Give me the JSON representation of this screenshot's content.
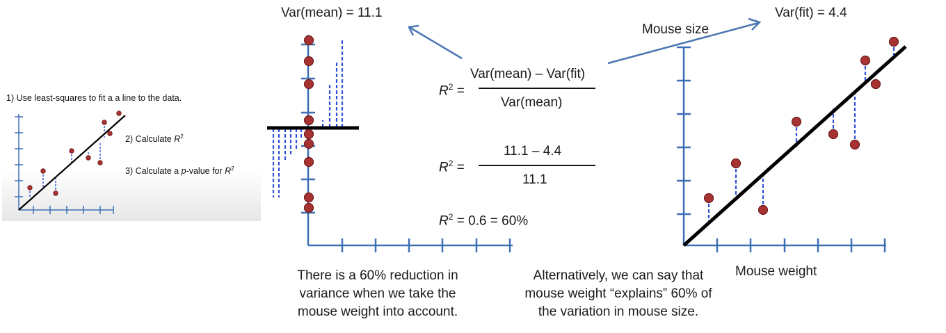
{
  "steps": {
    "step1": "1) Use least-squares to fit a a line to the data.",
    "step2_prefix": "2) Calculate ",
    "step2_sym": "R",
    "step2_exp": "2",
    "step3_prefix": "3) Calculate a ",
    "step3_italic": "p",
    "step3_mid": "-value for ",
    "step3_sym": "R",
    "step3_exp": "2"
  },
  "labels": {
    "var_mean": "Var(mean) = 11.1",
    "var_fit": "Var(fit) = 4.4",
    "mouse_size": "Mouse size",
    "mouse_weight": "Mouse weight"
  },
  "equations": {
    "r2_sym": "R",
    "r2_exp": "2",
    "equals": " =",
    "formula_numerator": "Var(mean) – Var(fit)",
    "formula_denominator": "Var(mean)",
    "numeric_numerator": "11.1 – 4.4",
    "numeric_denominator": "11.1",
    "result": " = 0.6 = 60%"
  },
  "captions": {
    "left": [
      "There is a 60% reduction in",
      "variance when we take the",
      "mouse weight into account."
    ],
    "right": [
      "Alternatively, we can say that",
      "mouse weight “explains” 60% of",
      "the variation in mouse size."
    ]
  },
  "colors": {
    "axis": "#3d6fb5",
    "point_fill": "#a83232",
    "point_stroke": "#6e1a1a",
    "residual": "#2f4fd8",
    "fit_line": "#000000"
  }
}
